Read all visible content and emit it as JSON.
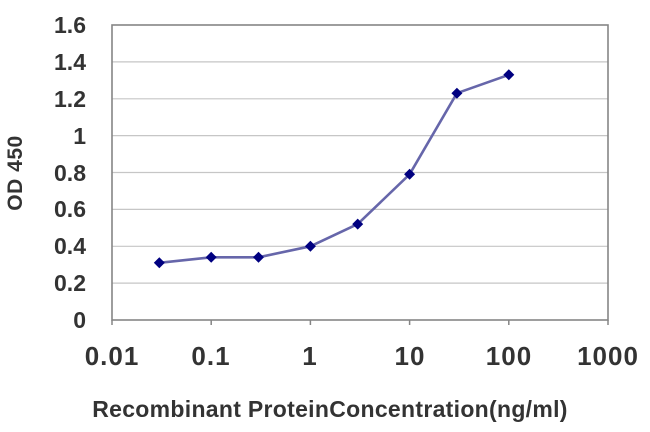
{
  "chart_data": {
    "type": "line",
    "title": "",
    "xlabel": "Recombinant ProteinConcentration(ng/ml)",
    "ylabel": "OD 450",
    "x_scale": "log",
    "x": [
      0.03,
      0.1,
      0.3,
      1,
      3,
      10,
      30,
      100
    ],
    "y": [
      0.31,
      0.34,
      0.34,
      0.4,
      0.52,
      0.79,
      1.23,
      1.33
    ],
    "xlim": [
      0.01,
      1000
    ],
    "ylim": [
      0,
      1.6
    ],
    "xticks": [
      0.01,
      0.1,
      1,
      10,
      100,
      1000
    ],
    "xtick_labels": [
      "0.01",
      "0.1",
      "1",
      "10",
      "100",
      "1000"
    ],
    "yticks": [
      0,
      0.2,
      0.4,
      0.6,
      0.8,
      1,
      1.2,
      1.4,
      1.6
    ],
    "ytick_labels": [
      "0",
      "0.2",
      "0.4",
      "0.6",
      "0.8",
      "1",
      "1.2",
      "1.4",
      "1.6"
    ],
    "grid": "horizontal",
    "legend": "none",
    "marker": "diamond",
    "colors": {
      "line": "#6666AA",
      "marker": "#000080",
      "grid": "#C6C6C6",
      "axis": "#858585",
      "text": "#333333",
      "background": "#FFFFFF"
    }
  }
}
